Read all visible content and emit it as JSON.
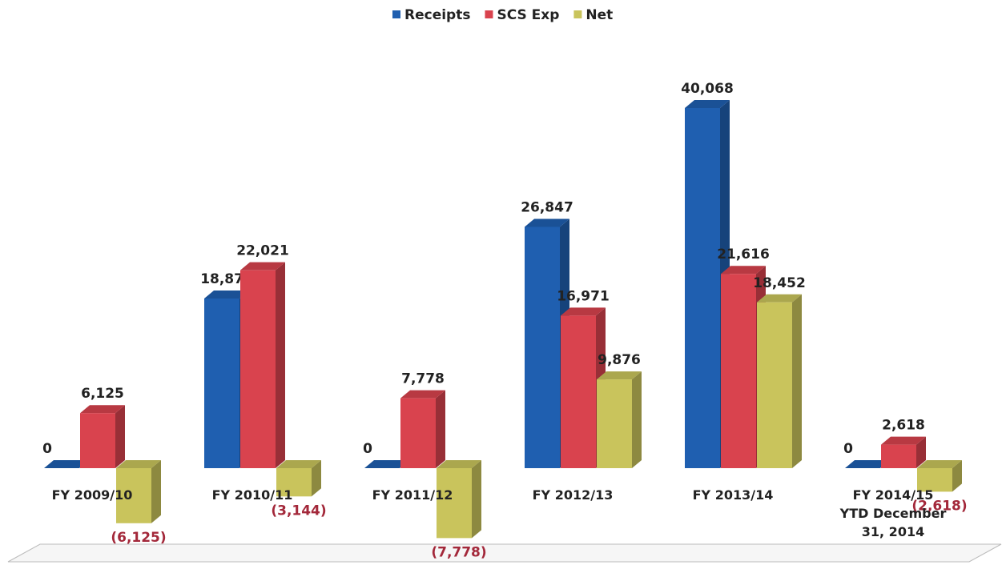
{
  "chart_data": {
    "type": "bar3d",
    "categories": [
      "FY 2009/10",
      "FY 2010/11",
      "FY 2011/12",
      "FY 2012/13",
      "FY 2013/14",
      "FY 2014/15\nYTD December\n31, 2014"
    ],
    "series": [
      {
        "name": "Receipts",
        "color": "#1f5fb0",
        "values": [
          0,
          18877,
          0,
          26847,
          40068,
          0
        ],
        "value_labels": [
          "0",
          "18,877",
          "0",
          "26,847",
          "40,068",
          "0"
        ]
      },
      {
        "name": "SCS Exp",
        "color": "#d9434e",
        "values": [
          6125,
          22021,
          7778,
          16971,
          21616,
          2618
        ],
        "value_labels": [
          "6,125",
          "22,021",
          "7,778",
          "16,971",
          "21,616",
          "2,618"
        ]
      },
      {
        "name": "Net",
        "color": "#c9c45c",
        "values": [
          -6125,
          -3144,
          -7778,
          9876,
          18452,
          -2618
        ],
        "value_labels": [
          "(6,125)",
          "(3,144)",
          "(7,778)",
          "9,876",
          "18,452",
          "(2,618)"
        ]
      }
    ],
    "legend": "top"
  }
}
